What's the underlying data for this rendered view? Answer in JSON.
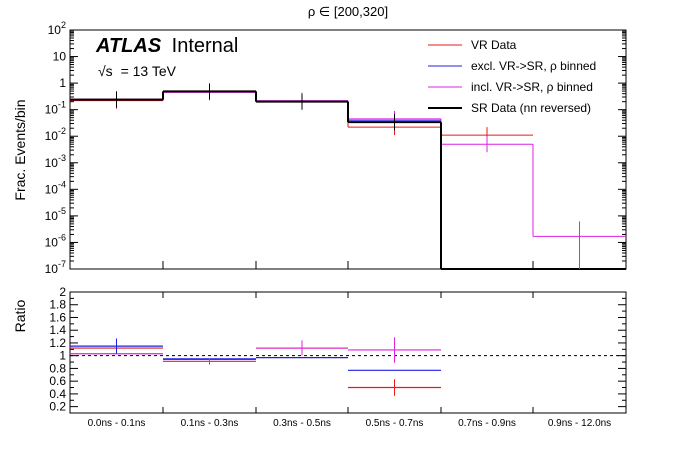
{
  "chart_data": [
    {
      "type": "line",
      "style": "step-histogram",
      "title": "ρ ∈ [200,320]",
      "ylabel": "Frac. Events/bin",
      "yscale": "log",
      "ylim": [
        1e-07,
        100
      ],
      "ytick_labels": [
        "10^-7",
        "10^-6",
        "10^-5",
        "10^-4",
        "10^-3",
        "10^-2",
        "10^-1",
        "1",
        "10",
        "10^2"
      ],
      "categories": [
        "0.0ns - 0.1ns",
        "0.1ns - 0.3ns",
        "0.3ns - 0.5ns",
        "0.5ns - 0.7ns",
        "0.7ns - 0.9ns",
        "0.9ns - 12.0ns"
      ],
      "annotation": {
        "experiment": "ATLAS",
        "status": "Internal",
        "energy_prefix": "√s",
        "energy": "= 13 TeV"
      },
      "series": [
        {
          "name": "VR Data",
          "color": "#e8191c",
          "values": [
            0.22,
            0.46,
            0.21,
            0.022,
            0.011,
            null
          ],
          "errors_visible": true
        },
        {
          "name": "excl. VR->SR, ρ binned",
          "color": "#2020e0",
          "values": [
            0.23,
            0.47,
            0.2,
            0.04,
            0.0,
            0.0
          ],
          "errors_visible": true
        },
        {
          "name": "incl. VR->SR, ρ binned",
          "color": "#e020e0",
          "values": [
            0.25,
            0.45,
            0.22,
            0.045,
            0.005,
            1.7e-06
          ],
          "errors_visible": true
        },
        {
          "name": "SR Data (nn reversed)",
          "color": "#000000",
          "values": [
            0.24,
            0.49,
            0.2,
            0.034,
            0.0,
            0.0
          ],
          "errors_visible": true
        }
      ]
    },
    {
      "type": "line",
      "style": "step-histogram",
      "ylabel": "Ratio",
      "ylim": [
        0.1,
        2.0
      ],
      "ytick_labels": [
        "0.2",
        "0.4",
        "0.6",
        "0.8",
        "1",
        "1.2",
        "1.4",
        "1.6",
        "1.8",
        "2"
      ],
      "reference_line": 1,
      "categories": [
        "0.0ns - 0.1ns",
        "0.1ns - 0.3ns",
        "0.3ns - 0.5ns",
        "0.5ns - 0.7ns",
        "0.7ns - 0.9ns",
        "0.9ns - 12.0ns"
      ],
      "series": [
        {
          "name": "VR Data",
          "color": "#e8191c",
          "values": [
            1.12,
            0.94,
            1.12,
            0.5,
            null,
            null
          ]
        },
        {
          "name": "excl. VR->SR, ρ binned",
          "color": "#2020e0",
          "values": [
            1.15,
            0.95,
            0.97,
            0.77,
            null,
            null
          ]
        },
        {
          "name": "incl. VR->SR, ρ binned",
          "color": "#e020e0",
          "values": [
            1.03,
            0.91,
            1.12,
            1.09,
            null,
            null
          ]
        }
      ],
      "error_bars": [
        {
          "series": 1,
          "bin": 0,
          "value": 1.15,
          "err": 0.12
        },
        {
          "series": 2,
          "bin": 1,
          "value": 0.91,
          "err": 0.05
        },
        {
          "series": 2,
          "bin": 2,
          "value": 1.12,
          "err": 0.12
        },
        {
          "series": 2,
          "bin": 3,
          "value": 1.09,
          "err": 0.2
        },
        {
          "series": 0,
          "bin": 3,
          "value": 0.5,
          "err": 0.13
        }
      ]
    }
  ]
}
